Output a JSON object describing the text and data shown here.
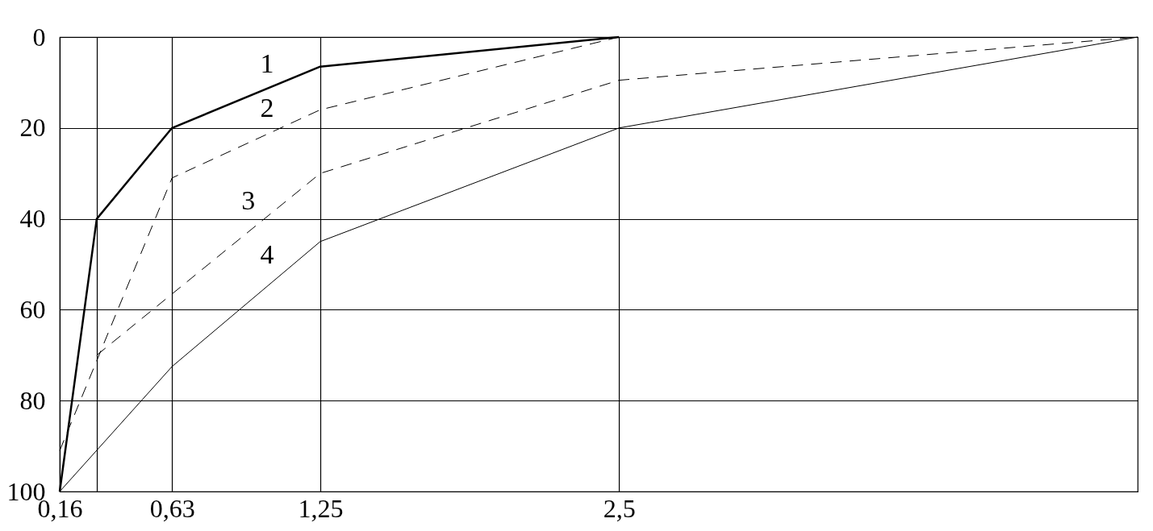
{
  "chart_data": {
    "type": "line",
    "xlim": [
      0.16,
      4.67
    ],
    "ylim": [
      100,
      0
    ],
    "xticks": [
      {
        "value": 0.16,
        "label": "0,16"
      },
      {
        "value": 0.315,
        "label": null
      },
      {
        "value": 0.63,
        "label": "0,63"
      },
      {
        "value": 1.25,
        "label": "1,25"
      },
      {
        "value": 2.5,
        "label": "2,5"
      }
    ],
    "yticks": [
      0,
      20,
      40,
      60,
      80,
      100
    ],
    "grid": true,
    "series": [
      {
        "name": "1",
        "color": "#000000",
        "line_style": "solid",
        "x": [
          0.16,
          0.315,
          0.63,
          1.25,
          2.5
        ],
        "values": [
          100,
          40,
          20,
          6.5,
          0
        ]
      },
      {
        "name": "2",
        "color": "#000000",
        "line_style": "dashed",
        "x": [
          0.16,
          0.63,
          1.25,
          2.5
        ],
        "values": [
          91,
          31,
          16,
          0
        ]
      },
      {
        "name": "3",
        "color": "#000000",
        "line_style": "dashed",
        "x": [
          0.315,
          1.25,
          2.5,
          4.67
        ],
        "values": [
          70,
          30,
          9.5,
          0
        ]
      },
      {
        "name": "4",
        "color": "#000000",
        "line_style": "solid",
        "x": [
          0.16,
          0.63,
          1.25,
          2.5,
          4.67
        ],
        "values": [
          100,
          72.5,
          45,
          20,
          0
        ]
      }
    ]
  }
}
